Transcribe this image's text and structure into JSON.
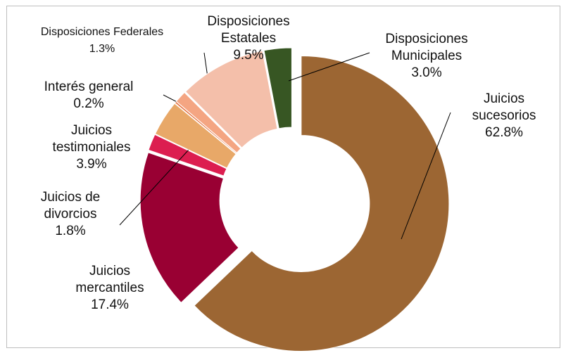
{
  "chart_data": {
    "type": "donut",
    "categories": [
      "Juicios\nsucesorios",
      "Juicios\nmercantiles",
      "Juicios de\ndivorcios",
      "Juicios\ntestimoniales",
      "Interés general",
      "Disposiciones Federales",
      "Disposiciones\nEstatales",
      "Disposiciones\nMunicipales"
    ],
    "values": [
      62.8,
      17.4,
      1.8,
      3.9,
      0.2,
      1.3,
      9.5,
      3.0
    ],
    "value_labels": [
      "62.8%",
      "17.4%",
      "1.8%",
      "3.9%",
      "0.2%",
      "1.3%",
      "9.5%",
      "3.0%"
    ],
    "colors": [
      "#9c6633",
      "#990033",
      "#dc1e50",
      "#e8a868",
      "#e46c3a",
      "#f4a582",
      "#f4bfaa",
      "#375623"
    ]
  }
}
